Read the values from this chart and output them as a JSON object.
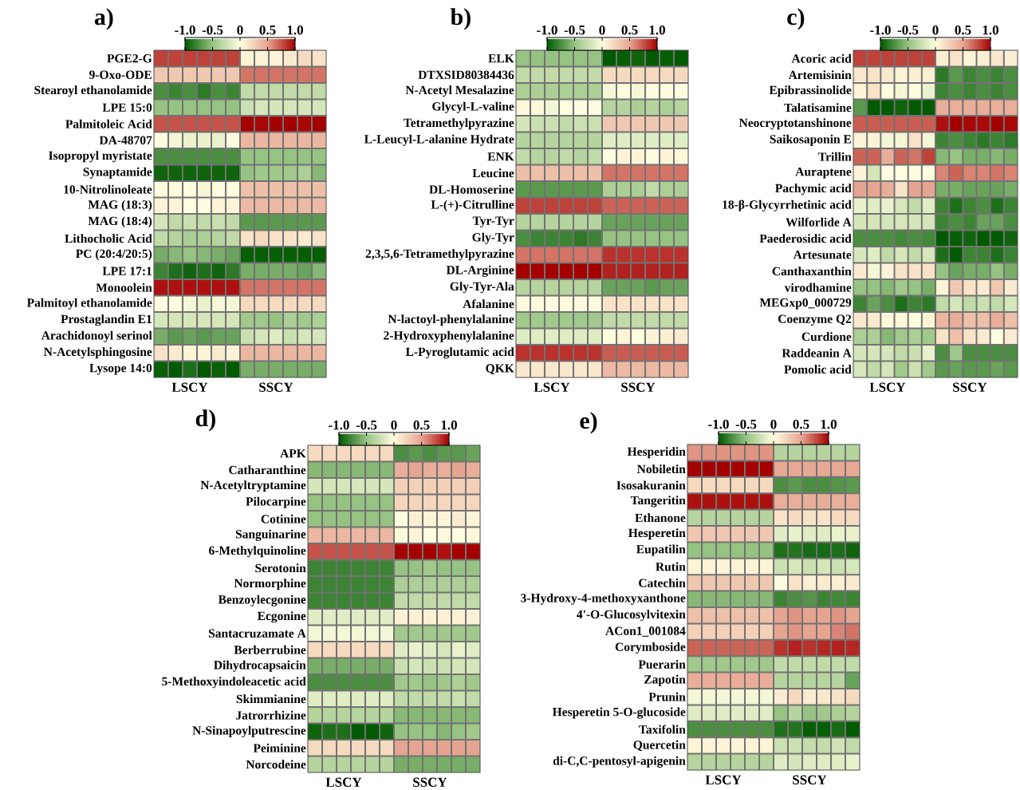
{
  "chart_data": [
    {
      "type": "heatmap",
      "title": "a)",
      "categories": [
        null,
        null,
        "LSCY",
        null,
        null,
        null,
        null,
        null,
        "SSCY",
        null,
        null,
        null
      ],
      "y_categories": [
        "PGE2-G",
        "9-Oxo-ODE",
        "Stearoyl ethanolamide",
        "LPE 15:0",
        "Palmitoleic Acid",
        "DA-48707",
        "Isopropyl myristate",
        "Synaptamide",
        "10-Nitrolinoleate",
        "MAG (18:3)",
        "MAG (18:4)",
        "Lithocholic Acid",
        "PC (20:4/20:5)",
        "LPE 17:1",
        "Monoolein",
        "Palmitoyl ethanolamide",
        "Prostaglandin E1",
        "Arachidonoyl serinol",
        "N-Acetylsphingosine",
        "Lysope 14:0"
      ],
      "cells": [
        [
          0.8,
          0.8,
          0.8,
          0.8,
          0.8,
          0.8,
          0.05,
          0.05,
          0.05,
          0.1,
          0.2,
          0.15
        ],
        [
          0.3,
          0.3,
          0.3,
          0.3,
          0.3,
          0.3,
          0.65,
          0.65,
          0.65,
          0.65,
          0.65,
          0.65
        ],
        [
          -0.75,
          -0.8,
          -0.75,
          -0.85,
          -0.75,
          -0.8,
          -0.3,
          -0.3,
          -0.3,
          -0.3,
          -0.3,
          -0.3
        ],
        [
          -0.5,
          -0.5,
          -0.5,
          -0.5,
          -0.5,
          -0.5,
          -0.25,
          -0.2,
          -0.2,
          -0.2,
          -0.2,
          -0.2
        ],
        [
          0.75,
          0.75,
          0.75,
          0.75,
          0.75,
          0.75,
          1,
          0.98,
          1,
          1,
          0.98,
          1
        ],
        [
          0,
          -0.05,
          -0.1,
          -0.1,
          -0.1,
          0,
          0.4,
          0.4,
          0.4,
          0.4,
          0.4,
          0.4
        ],
        [
          -0.75,
          -0.75,
          -0.75,
          -0.75,
          -0.75,
          -0.75,
          -0.5,
          -0.5,
          -0.5,
          -0.5,
          -0.5,
          -0.5
        ],
        [
          -0.95,
          -0.95,
          -0.95,
          -0.95,
          -0.95,
          -0.95,
          -0.5,
          -0.45,
          -0.45,
          -0.45,
          -0.4,
          -0.55
        ],
        [
          0,
          0,
          0,
          -0.05,
          0,
          0,
          0.35,
          0.35,
          0.35,
          0.35,
          0.35,
          0.35
        ],
        [
          0.05,
          0.05,
          0,
          0,
          0.05,
          0.05,
          0.38,
          0.38,
          0.38,
          0.38,
          0.38,
          0.38
        ],
        [
          -0.2,
          -0.3,
          -0.25,
          -0.3,
          -0.25,
          -0.3,
          -0.7,
          -0.7,
          -0.7,
          -0.7,
          -0.7,
          -0.7
        ],
        [
          -0.3,
          -0.35,
          -0.4,
          -0.4,
          -0.35,
          -0.3,
          0.15,
          0.2,
          0.15,
          0.15,
          0.1,
          0.15
        ],
        [
          -0.6,
          -0.55,
          -0.5,
          -0.55,
          -0.6,
          -0.65,
          -0.98,
          -0.98,
          -0.98,
          -0.98,
          -0.98,
          -0.98
        ],
        [
          -0.8,
          -0.9,
          -0.95,
          -0.9,
          -0.95,
          -0.85,
          -0.6,
          -0.6,
          -0.6,
          -0.6,
          -0.65,
          -0.55
        ],
        [
          0.95,
          0.95,
          0.95,
          0.95,
          0.95,
          0.95,
          0.65,
          0.65,
          0.65,
          0.65,
          0.65,
          0.65
        ],
        [
          0,
          0,
          -0.05,
          -0.1,
          -0.05,
          -0.05,
          0.2,
          0.2,
          0.2,
          0.2,
          0.2,
          0.2
        ],
        [
          -0.2,
          -0.2,
          -0.2,
          -0.2,
          -0.2,
          -0.2,
          -0.45,
          -0.45,
          -0.5,
          -0.4,
          -0.45,
          -0.4
        ],
        [
          -0.6,
          -0.7,
          -0.65,
          -0.7,
          -0.65,
          -0.65,
          -0.25,
          -0.2,
          -0.15,
          -0.25,
          -0.2,
          -0.2
        ],
        [
          0.15,
          0.1,
          0.05,
          0.05,
          0.1,
          0.05,
          0.4,
          0.4,
          0.4,
          0.4,
          0.4,
          0.4
        ],
        [
          -0.97,
          -1,
          -0.9,
          -1,
          -0.97,
          -1,
          -0.6,
          -0.6,
          -0.6,
          -0.6,
          -0.6,
          -0.6
        ]
      ],
      "clim": [
        -1,
        1
      ],
      "cticks": [
        {
          "value": -1,
          "label": "-1.0"
        },
        {
          "value": -0.5,
          "label": "-0.5"
        },
        0,
        0.5,
        {
          "value": 1,
          "label": "1.0"
        }
      ]
    },
    {
      "type": "heatmap",
      "title": "b)",
      "categories": [
        null,
        null,
        "LSCY",
        null,
        null,
        null,
        null,
        null,
        "SSCY",
        null,
        null,
        null
      ],
      "y_categories": [
        "ELK",
        "DTXSID80384436",
        "N-Acetyl Mesalazine",
        "Glycyl-L-valine",
        "Tetramethylpyrazine",
        "L-Leucyl-L-alanine Hydrate",
        "ENK",
        "Leucine",
        "DL-Homoserine",
        "L-(+)-Citrulline",
        "Tyr-Tyr",
        "Gly-Tyr",
        "2,3,5,6-Tetramethylpyrazine",
        "DL-Arginine",
        "Gly-Tyr-Ala",
        "Afalanine",
        "N-lactoyl-phenylalanine",
        "2-Hydroxyphenylalanine",
        "L-Pyroglutamic acid",
        "QKK"
      ],
      "cells": [
        [
          -0.5,
          -0.5,
          -0.5,
          -0.5,
          -0.5,
          -0.5,
          -1,
          -0.98,
          -0.95,
          -1,
          -0.98,
          -1
        ],
        [
          -0.3,
          -0.3,
          -0.3,
          -0.3,
          -0.3,
          -0.3,
          0.2,
          0.2,
          0.2,
          0.2,
          0.2,
          0.2
        ],
        [
          -0.4,
          -0.4,
          -0.4,
          -0.4,
          -0.4,
          -0.4,
          -0.05,
          0,
          -0.05,
          0,
          0,
          0
        ],
        [
          0.03,
          0.03,
          -0.05,
          0,
          0,
          0,
          -0.35,
          -0.35,
          -0.4,
          -0.35,
          -0.4,
          -0.35
        ],
        [
          -0.2,
          -0.25,
          -0.25,
          -0.3,
          -0.25,
          -0.25,
          0.3,
          0.3,
          0.3,
          0.3,
          0.3,
          0.3
        ],
        [
          -0.35,
          -0.35,
          -0.35,
          -0.35,
          -0.35,
          -0.35,
          -0.15,
          -0.15,
          -0.15,
          -0.15,
          -0.15,
          -0.15
        ],
        [
          -0.3,
          -0.35,
          -0.35,
          -0.3,
          -0.35,
          -0.3,
          0,
          0.05,
          0.05,
          0,
          0.05,
          0.03
        ],
        [
          0.35,
          0.35,
          0.35,
          0.35,
          0.35,
          0.35,
          0.65,
          0.65,
          0.65,
          0.65,
          0.65,
          0.65
        ],
        [
          -0.7,
          -0.7,
          -0.7,
          -0.7,
          -0.7,
          -0.7,
          -0.4,
          -0.4,
          -0.4,
          -0.3,
          -0.4,
          -0.4
        ],
        [
          0.8,
          0.8,
          0.8,
          0.8,
          0.8,
          0.8,
          0.7,
          0.7,
          0.7,
          0.7,
          0.7,
          0.7
        ],
        [
          -0.35,
          -0.35,
          -0.35,
          -0.35,
          -0.35,
          -0.35,
          -0.65,
          -0.65,
          -0.65,
          -0.65,
          -0.65,
          -0.65
        ],
        [
          -0.75,
          -0.8,
          -0.8,
          -0.8,
          -0.85,
          -0.8,
          -0.5,
          -0.5,
          -0.5,
          -0.5,
          -0.5,
          -0.5
        ],
        [
          0.65,
          0.65,
          0.65,
          0.65,
          0.65,
          0.65,
          0.85,
          0.85,
          0.85,
          0.85,
          0.85,
          0.85
        ],
        [
          1,
          1,
          1,
          1,
          1,
          1,
          0.9,
          0.9,
          0.9,
          0.9,
          0.9,
          0.9
        ],
        [
          -0.35,
          -0.35,
          -0.35,
          -0.35,
          -0.35,
          -0.35,
          -0.65,
          -0.65,
          -0.65,
          -0.7,
          -0.65,
          -0.65
        ],
        [
          0.02,
          0.02,
          0,
          0.02,
          0.02,
          0.02,
          0.15,
          0.15,
          0.15,
          0.15,
          0.15,
          0.15
        ],
        [
          -0.45,
          -0.45,
          -0.45,
          -0.45,
          -0.45,
          -0.45,
          -0.3,
          -0.3,
          -0.3,
          -0.3,
          -0.3,
          -0.3
        ],
        [
          -0.15,
          -0.15,
          -0.15,
          -0.15,
          -0.15,
          -0.15,
          0,
          0.05,
          0,
          0.05,
          0.08,
          0.1
        ],
        [
          0.85,
          0.85,
          0.85,
          0.85,
          0.85,
          0.85,
          0.72,
          0.72,
          0.72,
          0.72,
          0.72,
          0.72
        ],
        [
          0.12,
          0.12,
          0.12,
          0.12,
          0.12,
          0.12,
          0.38,
          0.38,
          0.38,
          0.38,
          0.38,
          0.38
        ]
      ],
      "clim": [
        -1,
        1
      ],
      "cticks": [
        {
          "value": -1,
          "label": "-1.0"
        },
        {
          "value": -0.5,
          "label": "-0.5"
        },
        0,
        0.5,
        {
          "value": 1,
          "label": "1.0"
        }
      ]
    },
    {
      "type": "heatmap",
      "title": "c)",
      "categories": [
        null,
        null,
        "LSCY",
        null,
        null,
        null,
        null,
        null,
        "SSCY",
        null,
        null,
        null
      ],
      "y_categories": [
        "Acoric acid",
        "Artemisinin",
        "Epibrassinolide",
        "Talatisamine",
        "Neocryptotanshinone",
        "Saikosaponin E",
        "Trillin",
        "Auraptene",
        "Pachymic acid",
        "18-β-Glycyrrhetinic acid",
        "Wilforlide A",
        "Paederosidic acid",
        "Artesunate",
        "Canthaxanthin",
        "virodhamine",
        "MEGxp0_000729",
        "Coenzyme Q2",
        "Curdione",
        "Raddeanin A",
        "Pomolic acid"
      ],
      "cells": [
        [
          0.8,
          0.8,
          0.8,
          0.8,
          0.8,
          0.8,
          0.08,
          0.15,
          0.05,
          0.08,
          0.12,
          0.08
        ],
        [
          0.12,
          0.15,
          0.12,
          0.05,
          0.08,
          0.08,
          -0.85,
          -0.7,
          -0.8,
          -0.75,
          -0.8,
          -0.75
        ],
        [
          0.05,
          0.15,
          0,
          -0.05,
          0,
          -0.1,
          -0.8,
          -0.75,
          -0.8,
          -0.75,
          -0.8,
          -0.75
        ],
        [
          -0.7,
          -1,
          -1,
          -0.95,
          -1,
          -1,
          0.45,
          0.45,
          0.45,
          0.45,
          0.45,
          0.45
        ],
        [
          0.72,
          0.72,
          0.72,
          0.72,
          0.72,
          0.72,
          0.95,
          1,
          0.98,
          0.97,
          1,
          0.98
        ],
        [
          0.05,
          0.05,
          -0.05,
          -0.05,
          0.15,
          -0.05,
          -0.8,
          -0.75,
          -0.8,
          -0.85,
          -0.8,
          -0.85
        ],
        [
          0.7,
          0.7,
          0.45,
          0.7,
          0.65,
          0.8,
          -0.55,
          -0.5,
          -0.6,
          -0.6,
          -0.55,
          -0.6
        ],
        [
          0.05,
          -0.2,
          0,
          0,
          0,
          0,
          0.6,
          0.7,
          0.6,
          0.6,
          0.65,
          0.6
        ],
        [
          0.5,
          0.5,
          0.45,
          0.15,
          0.5,
          0.5,
          -0.6,
          -0.6,
          -0.65,
          -0.65,
          -0.65,
          -0.6
        ],
        [
          -0.1,
          -0.15,
          -0.1,
          -0.2,
          -0.3,
          -0.15,
          -0.8,
          -0.9,
          -0.8,
          -0.75,
          -0.9,
          -0.8
        ],
        [
          -0.2,
          -0.2,
          -0.2,
          -0.2,
          -0.2,
          -0.2,
          -0.8,
          -0.75,
          -0.8,
          -0.65,
          -0.65,
          -0.75
        ],
        [
          -0.75,
          -0.75,
          -0.75,
          -0.78,
          -0.75,
          -0.78,
          -1,
          -0.98,
          -0.95,
          -1,
          -1,
          -0.95
        ],
        [
          -0.2,
          -0.15,
          -0.3,
          -0.2,
          -0.3,
          -0.2,
          -0.9,
          -1,
          -0.8,
          -0.8,
          -0.9,
          -0.8
        ],
        [
          0.1,
          -0.05,
          0.05,
          0.15,
          0.15,
          0.15,
          -0.5,
          -0.65,
          -0.6,
          -0.6,
          -0.5,
          -0.6
        ],
        [
          -0.5,
          -0.5,
          -0.55,
          -0.45,
          -0.5,
          -0.6,
          0.05,
          0.3,
          0.15,
          0.1,
          0.3,
          0.1
        ],
        [
          -0.8,
          -0.65,
          -0.75,
          -0.9,
          -0.8,
          -0.85,
          -0.3,
          -0.2,
          -0.3,
          -0.25,
          -0.3,
          -0.2
        ],
        [
          0.12,
          0.1,
          0.03,
          0.03,
          0,
          0.05,
          0.4,
          0.45,
          0.35,
          0.35,
          0.45,
          0.35
        ],
        [
          -0.4,
          -0.4,
          -0.55,
          -0.45,
          -0.4,
          -0.45,
          0.15,
          0.35,
          0.15,
          0.1,
          0,
          0.1
        ],
        [
          -0.2,
          -0.2,
          -0.2,
          -0.3,
          -0.25,
          -0.1,
          -0.75,
          -0.45,
          -0.75,
          -0.75,
          -0.75,
          -0.75
        ],
        [
          -0.2,
          -0.3,
          -0.2,
          -0.45,
          -0.25,
          -0.45,
          -0.7,
          -0.65,
          -0.7,
          -0.7,
          -0.65,
          -0.7
        ]
      ],
      "clim": [
        -1,
        1
      ],
      "cticks": [
        {
          "value": -1,
          "label": "-1.0"
        },
        {
          "value": -0.5,
          "label": "-0.5"
        },
        0,
        0.5,
        {
          "value": 1,
          "label": "1.0"
        }
      ]
    },
    {
      "type": "heatmap",
      "title": "d)",
      "categories": [
        null,
        null,
        "LSCY",
        null,
        null,
        null,
        null,
        null,
        "SSCY",
        null,
        null,
        null
      ],
      "y_categories": [
        "APK",
        "Catharanthine",
        "N-Acetyltryptamine",
        "Pilocarpine",
        "Cotinine",
        "Sanguinarine",
        "6-Methylquinoline",
        "Serotonin",
        "Normorphine",
        "Benzoylecgonine",
        "Ecgonine",
        "Santacruzamate A",
        "Berberrubine",
        "Dihydrocapsaicin",
        "5-Methoxyindoleacetic acid",
        "Skimmianine",
        "Jatrorrhizine",
        "N-Sinapoylputrescine",
        "Peiminine",
        "Norcodeine"
      ],
      "cells": [
        [
          0.2,
          0.2,
          0.2,
          0.2,
          0.2,
          0.2,
          -0.75,
          -0.7,
          -0.75,
          -0.7,
          -0.7,
          -0.65
        ],
        [
          -0.55,
          -0.55,
          -0.55,
          -0.55,
          -0.55,
          -0.55,
          0.45,
          0.5,
          0.45,
          0.45,
          0.5,
          0.45
        ],
        [
          -0.2,
          -0.2,
          -0.2,
          -0.2,
          -0.2,
          -0.2,
          0.25,
          0.25,
          0.25,
          0.25,
          0.25,
          0.25
        ],
        [
          -0.5,
          -0.5,
          -0.5,
          -0.5,
          -0.5,
          -0.5,
          0.22,
          0.22,
          0.22,
          0.22,
          0.22,
          0.22
        ],
        [
          -0.5,
          -0.5,
          -0.5,
          -0.5,
          -0.5,
          -0.5,
          0,
          0.08,
          0.05,
          0.05,
          0.1,
          0.05
        ],
        [
          0.4,
          0.4,
          0.4,
          0.4,
          0.4,
          0.4,
          0.03,
          0.05,
          0,
          0.03,
          0,
          0.03
        ],
        [
          0.75,
          0.75,
          0.75,
          0.75,
          0.75,
          0.75,
          1,
          1,
          1,
          0.95,
          1,
          1
        ],
        [
          -0.8,
          -0.8,
          -0.8,
          -0.8,
          -0.8,
          -0.8,
          -0.5,
          -0.5,
          -0.45,
          -0.5,
          -0.5,
          -0.5
        ],
        [
          -0.8,
          -0.8,
          -0.8,
          -0.8,
          -0.8,
          -0.8,
          -0.4,
          -0.4,
          -0.4,
          -0.4,
          -0.4,
          -0.4
        ],
        [
          -0.8,
          -0.8,
          -0.8,
          -0.8,
          -0.8,
          -0.8,
          -0.3,
          -0.3,
          -0.3,
          -0.3,
          -0.3,
          -0.3
        ],
        [
          -0.15,
          -0.15,
          -0.15,
          -0.15,
          -0.15,
          -0.15,
          0.07,
          0.07,
          0.07,
          0.07,
          0.07,
          0.07
        ],
        [
          -0.05,
          -0.05,
          -0.05,
          -0.05,
          -0.05,
          -0.05,
          -0.45,
          -0.45,
          -0.45,
          -0.45,
          -0.45,
          -0.45
        ],
        [
          0.2,
          0.2,
          0.2,
          0.2,
          0.2,
          0.2,
          -0.15,
          -0.1,
          -0.15,
          -0.2,
          -0.1,
          -0.15
        ],
        [
          -0.6,
          -0.6,
          -0.6,
          -0.6,
          -0.6,
          -0.6,
          -0.25,
          -0.2,
          -0.25,
          -0.25,
          -0.2,
          -0.2
        ],
        [
          -0.75,
          -0.75,
          -0.75,
          -0.75,
          -0.75,
          -0.75,
          -0.45,
          -0.45,
          -0.5,
          -0.45,
          -0.4,
          -0.45
        ],
        [
          -0.15,
          -0.15,
          -0.15,
          -0.15,
          -0.15,
          -0.15,
          -0.3,
          -0.3,
          -0.3,
          -0.3,
          -0.25,
          -0.3
        ],
        [
          -0.35,
          -0.35,
          -0.35,
          -0.35,
          -0.35,
          -0.35,
          -0.55,
          -0.55,
          -0.55,
          -0.55,
          -0.55,
          -0.55
        ],
        [
          -0.95,
          -0.9,
          -0.9,
          -1,
          -1,
          -0.95,
          -0.5,
          -0.5,
          -0.5,
          -0.55,
          -0.5,
          -0.45
        ],
        [
          0.2,
          0.2,
          0.2,
          0.2,
          0.2,
          0.2,
          0.5,
          0.5,
          0.5,
          0.5,
          0.5,
          0.5
        ],
        [
          -0.35,
          -0.35,
          -0.35,
          -0.35,
          -0.35,
          -0.35,
          -0.6,
          -0.6,
          -0.6,
          -0.6,
          -0.6,
          -0.6
        ]
      ],
      "clim": [
        -1,
        1
      ],
      "cticks": [
        {
          "value": -1,
          "label": "-1.0"
        },
        {
          "value": -0.5,
          "label": "-0.5"
        },
        0,
        0.5,
        {
          "value": 1,
          "label": "1.0"
        }
      ]
    },
    {
      "type": "heatmap",
      "title": "e)",
      "categories": [
        null,
        null,
        "LSCY",
        null,
        null,
        null,
        null,
        null,
        "SSCY",
        null,
        null,
        null
      ],
      "y_categories": [
        "Hesperidin",
        "Nobiletin",
        "Isosakuranin",
        "Tangeritin",
        "Ethanone",
        "Hesperetin",
        "Eupatilin",
        "Rutin",
        "Catechin",
        "3-Hydroxy-4-methoxyxanthone",
        "4'-O-Glucosylvitexin",
        "ACon1_001084",
        "Corymboside",
        "Puerarin",
        "Zapotin",
        "Prunin",
        "Hesperetin 5-O-glucoside",
        "Taxifolin",
        "Quercetin",
        "di-C,C-pentosyl-apigenin"
      ],
      "cells": [
        [
          0.55,
          0.55,
          0.55,
          0.55,
          0.55,
          0.55,
          -0.35,
          -0.35,
          -0.35,
          -0.35,
          -0.35,
          -0.35
        ],
        [
          1,
          1,
          1,
          1,
          1,
          1,
          0.48,
          0.48,
          0.48,
          0.48,
          0.48,
          0.48
        ],
        [
          0.2,
          0.2,
          0.2,
          0.2,
          0.2,
          0.2,
          -0.75,
          -0.7,
          -0.75,
          -0.75,
          -0.72,
          -0.7
        ],
        [
          0.95,
          0.95,
          0.95,
          0.95,
          0.95,
          0.95,
          0.45,
          0.45,
          0.45,
          0.45,
          0.45,
          0.45
        ],
        [
          -0.35,
          -0.35,
          -0.35,
          -0.35,
          -0.35,
          -0.35,
          0.15,
          0.2,
          0.15,
          0.15,
          0.2,
          0.2
        ],
        [
          0.3,
          0.3,
          0.3,
          0.3,
          0.3,
          0.3,
          -0.15,
          -0.1,
          -0.15,
          -0.15,
          -0.1,
          -0.1
        ],
        [
          -0.5,
          -0.5,
          -0.5,
          -0.5,
          -0.5,
          -0.5,
          -0.9,
          -0.88,
          -0.92,
          -0.92,
          -0.9,
          -0.95
        ],
        [
          0.05,
          0.05,
          0.05,
          0.05,
          0.05,
          0.05,
          -0.25,
          -0.2,
          -0.25,
          -0.2,
          -0.25,
          -0.2
        ],
        [
          0.3,
          0.3,
          0.3,
          0.3,
          0.3,
          0.3,
          0,
          0.15,
          0.08,
          0.1,
          0.08,
          0.1
        ],
        [
          -0.55,
          -0.55,
          -0.55,
          -0.55,
          -0.55,
          -0.55,
          -0.8,
          -0.75,
          -0.72,
          -0.8,
          -0.78,
          -0.8
        ],
        [
          0.35,
          0.35,
          0.35,
          0.35,
          0.35,
          0.35,
          0.5,
          0.55,
          0.5,
          0.5,
          0.55,
          0.5
        ],
        [
          0.25,
          0.25,
          0.25,
          0.25,
          0.25,
          0.25,
          0.5,
          0.55,
          0.5,
          0.5,
          0.6,
          0.65
        ],
        [
          0.7,
          0.7,
          0.7,
          0.7,
          0.7,
          0.7,
          0.85,
          0.9,
          0.85,
          0.88,
          0.9,
          0.88
        ],
        [
          -0.45,
          -0.45,
          -0.45,
          -0.45,
          -0.45,
          -0.45,
          -0.3,
          -0.3,
          -0.3,
          -0.3,
          -0.3,
          -0.3
        ],
        [
          0.45,
          0.45,
          0.45,
          0.45,
          0.45,
          0.45,
          -0.35,
          -0.35,
          -0.35,
          -0.35,
          -0.35,
          -0.65
        ],
        [
          -0.05,
          -0.05,
          -0.05,
          -0.05,
          -0.05,
          -0.05,
          0.1,
          0.2,
          0.1,
          0.12,
          0.15,
          0.2
        ],
        [
          -0.15,
          -0.15,
          -0.15,
          -0.15,
          -0.15,
          -0.15,
          -0.5,
          -0.35,
          -0.5,
          -0.45,
          -0.4,
          -0.35
        ],
        [
          -0.75,
          -0.75,
          -0.75,
          -0.75,
          -0.75,
          -0.75,
          -0.9,
          -0.88,
          -0.98,
          -0.98,
          -0.92,
          -1
        ],
        [
          0.05,
          0.05,
          0.05,
          0.05,
          0.05,
          0.05,
          -0.25,
          -0.25,
          -0.28,
          -0.28,
          -0.22,
          -0.3
        ],
        [
          -0.35,
          -0.35,
          -0.35,
          -0.35,
          -0.35,
          -0.35,
          -0.15,
          -0.2,
          -0.15,
          -0.15,
          -0.15,
          -0.1
        ]
      ],
      "clim": [
        -1,
        1
      ],
      "cticks": [
        {
          "value": -1,
          "label": "-1.0"
        },
        {
          "value": -0.5,
          "label": "-0.5"
        },
        0,
        0.5,
        {
          "value": 1,
          "label": "1.0"
        }
      ]
    }
  ]
}
